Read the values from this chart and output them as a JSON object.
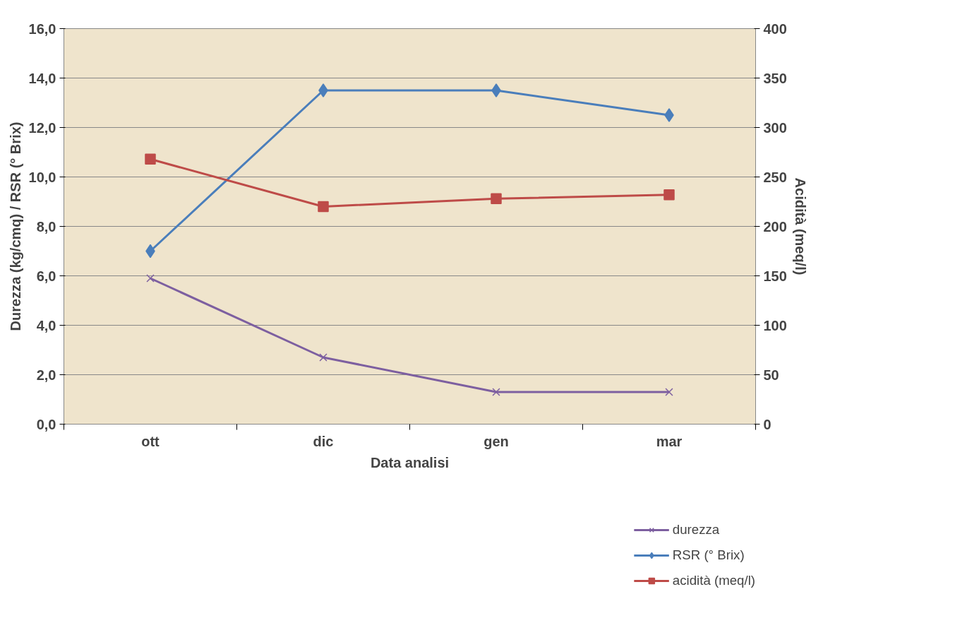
{
  "chart_data": {
    "type": "line",
    "xlabel": "Data analisi",
    "ylabel": "Durezza (kg/cmq) / RSR (° Brix)",
    "y2label": "Acidità (meq/l)",
    "categories": [
      "ott",
      "dic",
      "gen",
      "mar"
    ],
    "series": [
      {
        "name": "durezza",
        "color": "#7d5fa0",
        "marker": "cross",
        "values": [
          5.9,
          2.7,
          1.3,
          1.3
        ]
      },
      {
        "name": "RSR (° Brix)",
        "color": "#4a7ebb",
        "marker": "diamond",
        "values": [
          7.0,
          13.5,
          13.5,
          12.5
        ]
      },
      {
        "name": "acidità (meq/l)",
        "color": "#be4b48",
        "marker": "square",
        "axis": "y2",
        "values": [
          268,
          220,
          228,
          232
        ]
      }
    ],
    "ylim": [
      0,
      16
    ],
    "yticks": [
      {
        "value": 0,
        "label": "0,0"
      },
      {
        "value": 2,
        "label": "2,0"
      },
      {
        "value": 4,
        "label": "4,0"
      },
      {
        "value": 6,
        "label": "6,0"
      },
      {
        "value": 8,
        "label": "8,0"
      },
      {
        "value": 10,
        "label": "10,0"
      },
      {
        "value": 12,
        "label": "12,0"
      },
      {
        "value": 14,
        "label": "14,0"
      },
      {
        "value": 16,
        "label": "16,0"
      }
    ],
    "y2lim": [
      0,
      400
    ],
    "y2ticks": [
      0,
      50,
      100,
      150,
      200,
      250,
      300,
      350,
      400
    ],
    "grid": "y",
    "legend": "bottom right",
    "line_style": "solid"
  }
}
